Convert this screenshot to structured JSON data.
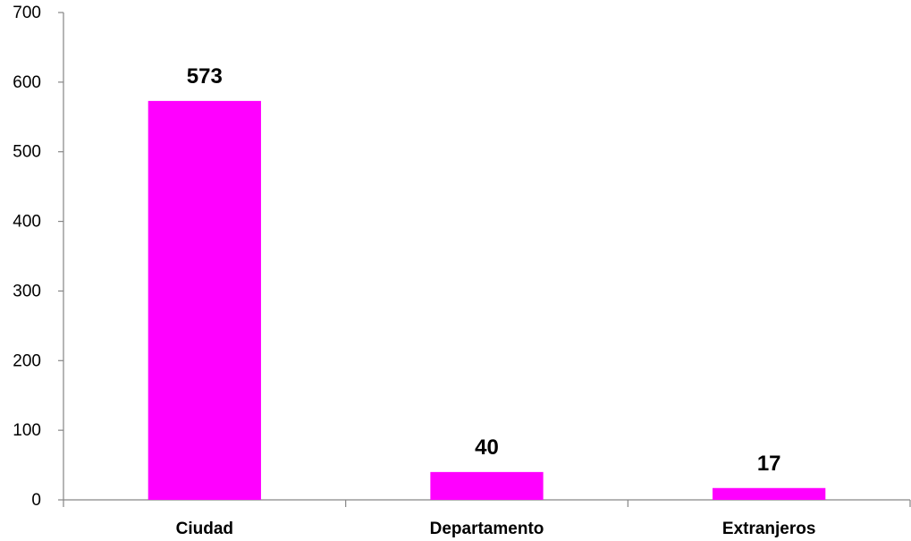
{
  "chart_data": {
    "type": "bar",
    "categories": [
      "Ciudad",
      "Departamento",
      "Extranjeros"
    ],
    "values": [
      573,
      40,
      17
    ],
    "data_labels": [
      "573",
      "40",
      "17"
    ],
    "title": "",
    "xlabel": "",
    "ylabel": "",
    "ylim": [
      0,
      700
    ],
    "yticks": [
      0,
      100,
      200,
      300,
      400,
      500,
      600,
      700
    ],
    "ytick_labels": [
      "0",
      "100",
      "200",
      "300",
      "400",
      "500",
      "600",
      "700"
    ],
    "grid": false,
    "legend": "none",
    "bar_color": "#FF00FF"
  }
}
